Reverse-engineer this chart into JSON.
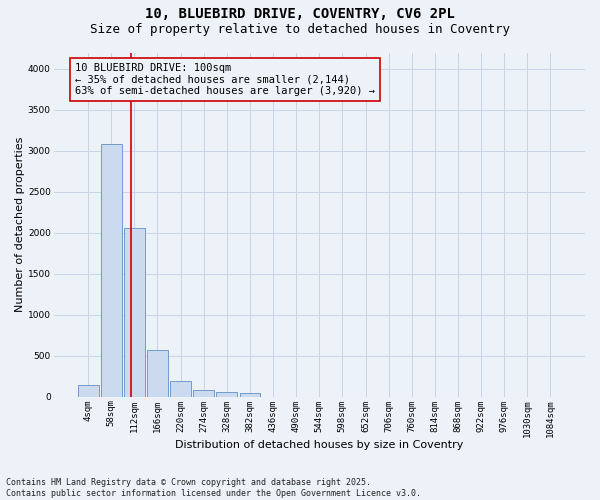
{
  "title_line1": "10, BLUEBIRD DRIVE, COVENTRY, CV6 2PL",
  "title_line2": "Size of property relative to detached houses in Coventry",
  "xlabel": "Distribution of detached houses by size in Coventry",
  "ylabel": "Number of detached properties",
  "bar_labels": [
    "4sqm",
    "58sqm",
    "112sqm",
    "166sqm",
    "220sqm",
    "274sqm",
    "328sqm",
    "382sqm",
    "436sqm",
    "490sqm",
    "544sqm",
    "598sqm",
    "652sqm",
    "706sqm",
    "760sqm",
    "814sqm",
    "868sqm",
    "922sqm",
    "976sqm",
    "1030sqm",
    "1084sqm"
  ],
  "bar_values": [
    140,
    3080,
    2060,
    570,
    195,
    80,
    60,
    50,
    0,
    0,
    0,
    0,
    0,
    0,
    0,
    0,
    0,
    0,
    0,
    0,
    0
  ],
  "bar_color": "#ccdaf0",
  "bar_edge_color": "#6090c8",
  "grid_color": "#c8d4e8",
  "background_color": "#edf1f8",
  "vline_color": "#cc0000",
  "vline_x": 1.85,
  "annotation_text": "10 BLUEBIRD DRIVE: 100sqm\n← 35% of detached houses are smaller (2,144)\n63% of semi-detached houses are larger (3,920) →",
  "annotation_box_facecolor": "#edf1f8",
  "annotation_box_edgecolor": "#cc0000",
  "ylim": [
    0,
    4200
  ],
  "yticks": [
    0,
    500,
    1000,
    1500,
    2000,
    2500,
    3000,
    3500,
    4000
  ],
  "footnote": "Contains HM Land Registry data © Crown copyright and database right 2025.\nContains public sector information licensed under the Open Government Licence v3.0.",
  "title_fontsize": 10,
  "subtitle_fontsize": 9,
  "axis_label_fontsize": 8,
  "tick_fontsize": 6.5,
  "annotation_fontsize": 7.5,
  "footnote_fontsize": 6.0
}
